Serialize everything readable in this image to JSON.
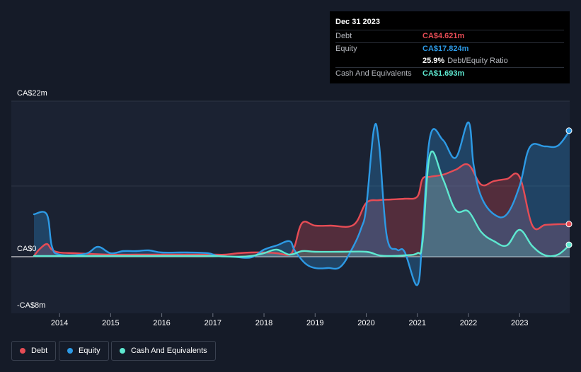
{
  "tooltip": {
    "date": "Dec 31 2023",
    "debt_label": "Debt",
    "debt_value": "CA$4.621m",
    "equity_label": "Equity",
    "equity_value": "CA$17.824m",
    "ratio_value": "25.9%",
    "ratio_label": "Debt/Equity Ratio",
    "cash_label": "Cash And Equivalents",
    "cash_value": "CA$1.693m"
  },
  "legend": {
    "debt": "Debt",
    "equity": "Equity",
    "cash": "Cash And Equivalents"
  },
  "colors": {
    "debt": "#e64c55",
    "equity": "#2d9ae5",
    "cash": "#5ee8d0",
    "background": "#151b28",
    "plot": "#1b2232"
  },
  "chart_data": {
    "type": "area",
    "ylim": [
      -8,
      22
    ],
    "ytick_labels": [
      "CA$22m",
      "CA$0",
      "-CA$8m"
    ],
    "ytick_values": [
      22,
      0,
      -8
    ],
    "xlim": [
      2013.5,
      2023.98
    ],
    "xtick_labels": [
      "2014",
      "2015",
      "2016",
      "2017",
      "2018",
      "2019",
      "2020",
      "2021",
      "2022",
      "2023"
    ],
    "xtick_values": [
      2014,
      2015,
      2016,
      2017,
      2018,
      2019,
      2020,
      2021,
      2022,
      2023
    ],
    "series": [
      {
        "name": "Debt",
        "key": "debt",
        "x": [
          2013.5,
          2013.6,
          2013.75,
          2013.85,
          2014.0,
          2014.3,
          2014.6,
          2015.0,
          2015.5,
          2016.0,
          2016.5,
          2017.0,
          2017.25,
          2017.5,
          2017.75,
          2018.0,
          2018.25,
          2018.5,
          2018.6,
          2018.75,
          2019.0,
          2019.3,
          2019.75,
          2020.0,
          2020.25,
          2020.5,
          2020.75,
          2021.0,
          2021.1,
          2021.25,
          2021.5,
          2021.75,
          2022.0,
          2022.25,
          2022.5,
          2022.75,
          2023.0,
          2023.25,
          2023.5,
          2023.75,
          2023.98
        ],
        "y": [
          0.1,
          1.0,
          1.8,
          1.0,
          0.6,
          0.5,
          0.4,
          0.3,
          0.3,
          0.3,
          0.3,
          0.3,
          0.3,
          0.5,
          0.6,
          0.6,
          0.5,
          0.3,
          1.5,
          4.8,
          4.4,
          4.4,
          4.5,
          7.6,
          8.0,
          8.1,
          8.2,
          8.5,
          11.0,
          11.3,
          11.6,
          12.3,
          13.0,
          10.2,
          10.7,
          11.0,
          11.3,
          4.4,
          4.5,
          4.6,
          4.621
        ]
      },
      {
        "name": "Equity",
        "key": "equity",
        "x": [
          2013.5,
          2013.75,
          2013.85,
          2014.0,
          2014.5,
          2014.75,
          2015.0,
          2015.25,
          2015.5,
          2015.75,
          2016.0,
          2016.5,
          2016.9,
          2017.1,
          2017.4,
          2017.75,
          2018.0,
          2018.25,
          2018.5,
          2018.6,
          2018.8,
          2019.0,
          2019.25,
          2019.5,
          2019.75,
          2019.9,
          2020.0,
          2020.15,
          2020.25,
          2020.4,
          2020.6,
          2020.75,
          2021.0,
          2021.1,
          2021.25,
          2021.5,
          2021.75,
          2022.0,
          2022.1,
          2022.25,
          2022.5,
          2022.75,
          2023.0,
          2023.2,
          2023.5,
          2023.75,
          2023.98
        ],
        "y": [
          6.0,
          6.0,
          1.5,
          0.3,
          0.4,
          1.4,
          0.5,
          0.8,
          0.8,
          0.9,
          0.6,
          0.6,
          0.5,
          0.1,
          0.0,
          -0.1,
          1.0,
          1.6,
          2.2,
          0.9,
          -0.9,
          -1.6,
          -1.6,
          -1.4,
          1.5,
          4.0,
          7.0,
          18.0,
          16.0,
          3.0,
          1.0,
          0.7,
          -4.0,
          3.0,
          17.0,
          16.5,
          14.0,
          19.0,
          13.0,
          8.5,
          6.0,
          6.0,
          10.0,
          15.5,
          15.6,
          15.7,
          17.824
        ]
      },
      {
        "name": "Cash And Equivalents",
        "key": "cash",
        "x": [
          2013.5,
          2014.0,
          2014.5,
          2015.0,
          2015.5,
          2016.0,
          2016.5,
          2017.0,
          2017.5,
          2017.75,
          2018.0,
          2018.25,
          2018.5,
          2018.75,
          2019.0,
          2019.5,
          2020.0,
          2020.25,
          2020.5,
          2020.75,
          2021.0,
          2021.1,
          2021.25,
          2021.5,
          2021.75,
          2022.0,
          2022.25,
          2022.5,
          2022.75,
          2023.0,
          2023.25,
          2023.5,
          2023.75,
          2023.98
        ],
        "y": [
          0.1,
          0.1,
          0.1,
          0.1,
          0.1,
          0.1,
          0.1,
          0.1,
          0.0,
          0.1,
          0.5,
          1.0,
          0.3,
          0.8,
          0.7,
          0.7,
          0.7,
          0.2,
          0.1,
          0.2,
          0.5,
          2.0,
          14.5,
          11.0,
          6.6,
          6.4,
          3.5,
          2.2,
          1.6,
          3.8,
          1.5,
          0.2,
          0.3,
          1.693
        ]
      }
    ]
  }
}
